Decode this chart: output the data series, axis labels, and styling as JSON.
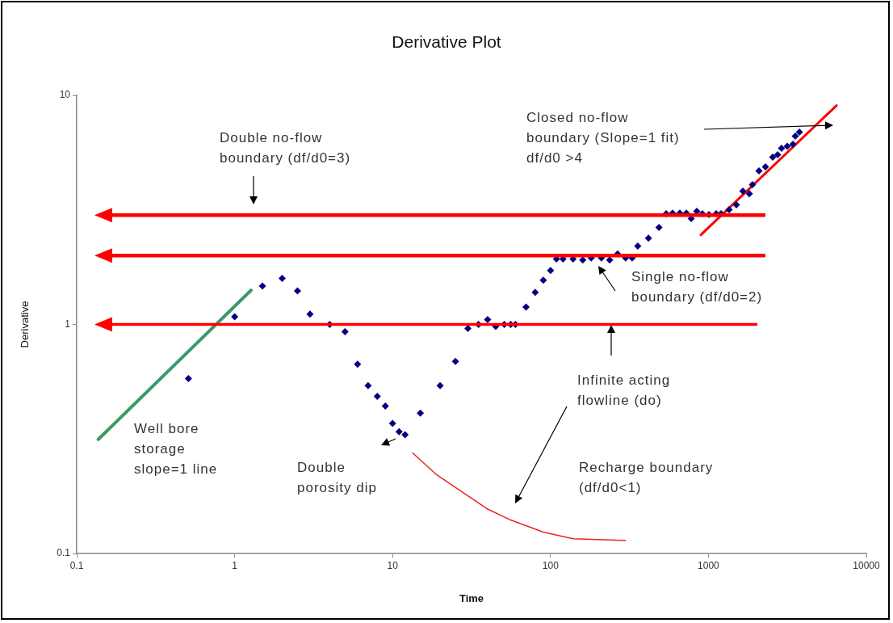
{
  "chart_data": {
    "type": "scatter",
    "title": "Derivative Plot",
    "xlabel": "Time",
    "ylabel": "Derivative",
    "log": "xy",
    "grid": false,
    "legend": false,
    "marker": "none",
    "xlim": [
      0.1,
      10000
    ],
    "xticks": [
      0.1,
      1,
      10,
      100,
      1000,
      10000
    ],
    "ylim": [
      0.1,
      10
    ],
    "yticks": [
      0.1,
      1,
      10
    ],
    "series": [
      {
        "type": "scatter",
        "color": "#000080",
        "marker": "diamond",
        "x": [
          0.51,
          1.0,
          1.5,
          2.0,
          2.5,
          3.0,
          4.0,
          5.0,
          6.0,
          7.0,
          8.0,
          9.0,
          10,
          11,
          12,
          15,
          20,
          25,
          30,
          35,
          40,
          45,
          51,
          56,
          60,
          70,
          80,
          90,
          100,
          109,
          120,
          139,
          160,
          181,
          210,
          237,
          266,
          299,
          329,
          357,
          417,
          486,
          540,
          593,
          659,
          725,
          778,
          844,
          916,
          1007,
          1120,
          1202,
          1352,
          1503,
          1652,
          1815,
          1900,
          2089,
          2296,
          2552,
          2742,
          2904,
          3155,
          3428,
          3550,
          3767
        ],
        "values": [
          0.58,
          1.08,
          1.47,
          1.59,
          1.4,
          1.11,
          1.0,
          0.93,
          0.67,
          0.54,
          0.485,
          0.44,
          0.37,
          0.34,
          0.33,
          0.41,
          0.54,
          0.69,
          0.96,
          1.0,
          1.05,
          0.98,
          1.0,
          1.0,
          1.0,
          1.19,
          1.38,
          1.56,
          1.72,
          1.93,
          1.93,
          1.93,
          1.91,
          1.95,
          1.95,
          1.91,
          2.03,
          1.95,
          1.95,
          2.2,
          2.38,
          2.65,
          3.04,
          3.06,
          3.06,
          3.06,
          2.9,
          3.12,
          3.04,
          3.02,
          3.04,
          3.04,
          3.17,
          3.33,
          3.82,
          3.72,
          4.08,
          4.68,
          4.87,
          5.37,
          5.5,
          5.87,
          6.0,
          6.12,
          6.64,
          6.91
        ]
      },
      {
        "type": "line",
        "color": "#3c9a64",
        "x": [
          0.137,
          1.27
        ],
        "values": [
          0.315,
          1.41
        ]
      },
      {
        "type": "line",
        "color": "#ff0000",
        "x": [
          896,
          6471
        ],
        "values": [
          2.46,
          9.03
        ]
      },
      {
        "type": "line",
        "color": "#e8261e",
        "x": [
          13.4,
          18.8,
          23.8,
          39.5,
          56,
          90,
          139,
          299
        ],
        "values": [
          0.275,
          0.222,
          0.199,
          0.157,
          0.14,
          0.124,
          0.116,
          0.114
        ]
      }
    ],
    "ref_lines": [
      {
        "axis": "y",
        "value": 3,
        "color": "#ff0000"
      },
      {
        "axis": "y",
        "value": 2,
        "color": "#ff0000"
      },
      {
        "axis": "y",
        "value": 1,
        "color": "#ff0000"
      }
    ],
    "annotations": [
      "Double no-flow\nboundary (df/d0=3)",
      "Closed no-flow\nboundary (Slope=1 fit)\ndf/d0 >4",
      "Single no-flow\nboundary (df/d0=2)",
      "Infinite acting\nflowline (do)",
      "Well bore\nstorage\nslope=1 line",
      "Double\nporosity dip",
      "Recharge boundary\n(df/d0<1)"
    ]
  }
}
